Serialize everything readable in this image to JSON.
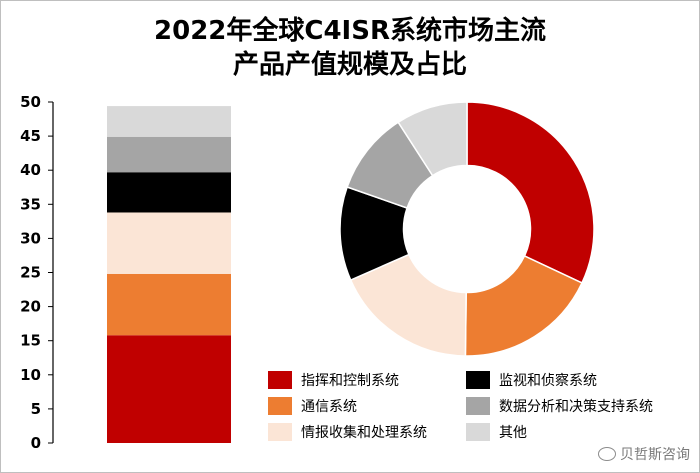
{
  "chart_data": {
    "type": "bar",
    "title": "2022年全球C4ISR系统市场主流",
    "subtitle": "产品产值规模及占比",
    "ylim": [
      0,
      50
    ],
    "yticks": [
      0,
      5,
      10,
      15,
      20,
      25,
      30,
      35,
      40,
      45,
      50
    ],
    "grid": false,
    "series": [
      {
        "name": "指挥和控制系统",
        "value": 15.8,
        "color": "#c00000"
      },
      {
        "name": "通信系统",
        "value": 9.0,
        "color": "#ed7d31"
      },
      {
        "name": "情报收集和处理系统",
        "value": 9.0,
        "color": "#fbe5d6"
      },
      {
        "name": "监视和侦察系统",
        "value": 5.9,
        "color": "#000000"
      },
      {
        "name": "数据分析和决策支持系统",
        "value": 5.2,
        "color": "#a5a5a5"
      },
      {
        "name": "其他",
        "value": 4.5,
        "color": "#d9d9d9"
      }
    ],
    "donut": {
      "type": "pie",
      "start_angle_deg": 0,
      "hole": 0.5
    },
    "legend_position": "bottom-right"
  },
  "legend": {
    "columns": [
      [
        "指挥和控制系统",
        "通信系统",
        "情报收集和处理系统"
      ],
      [
        "监视和侦察系统",
        "数据分析和决策支持系统",
        "其他"
      ]
    ]
  },
  "watermark": {
    "text": "贝哲斯咨询"
  }
}
